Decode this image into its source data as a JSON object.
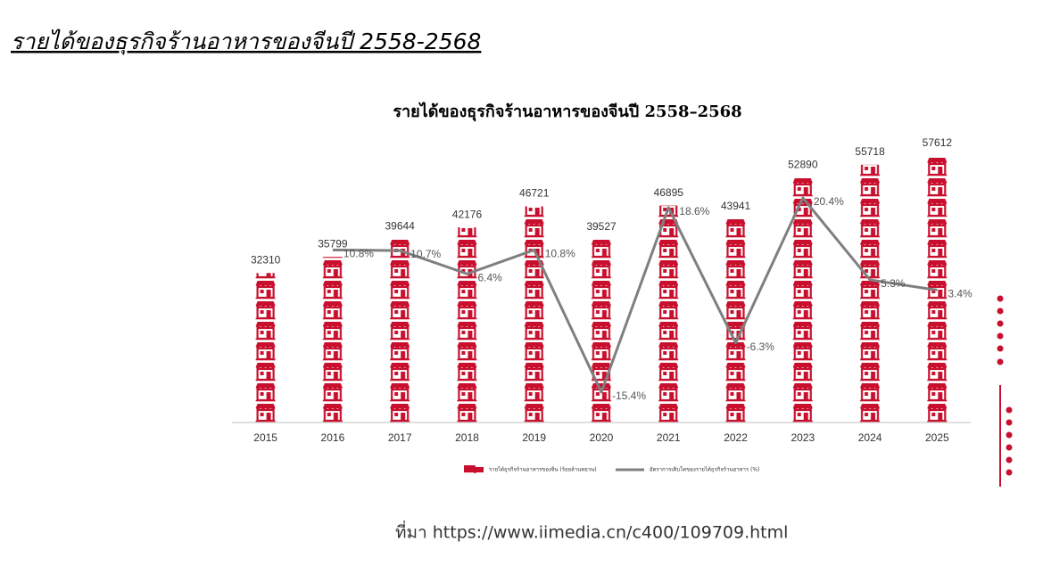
{
  "page_title": "รายได้ของธุรกิจร้านอาหารของจีนปี 2558-2568",
  "chart_data": {
    "type": "pictogram-bar-line",
    "title": "รายได้ของธุรกิจร้านอาหารของจีนปี 2558–2568",
    "categories": [
      "2015",
      "2016",
      "2017",
      "2018",
      "2019",
      "2020",
      "2021",
      "2022",
      "2023",
      "2024",
      "2025"
    ],
    "series": [
      {
        "name": "รายได้ธุรกิจร้านอาหารของจีน (ร้อยล้านหยวน)",
        "color": "#c8102e",
        "values": [
          32310,
          35799,
          39644,
          42176,
          46721,
          39527,
          46895,
          43941,
          52890,
          55718,
          57612
        ]
      },
      {
        "name": "อัตราการเติบโตของรายได้ธุรกิจร้านอาหาร (%)",
        "color": "#7f7f7f",
        "axis": "y2",
        "values": [
          null,
          10.8,
          10.7,
          6.4,
          10.8,
          -15.4,
          18.6,
          -6.3,
          20.4,
          5.3,
          3.4
        ],
        "value_labels": [
          null,
          "10.8%",
          "10.7%",
          "6.4%",
          "10.8%",
          "-15.4%",
          "18.6%",
          "-6.3%",
          "20.4%",
          "5.3%",
          "3.4%"
        ]
      }
    ]
  },
  "source": "ที่มา https://www.iimedia.cn/c400/109709.html"
}
